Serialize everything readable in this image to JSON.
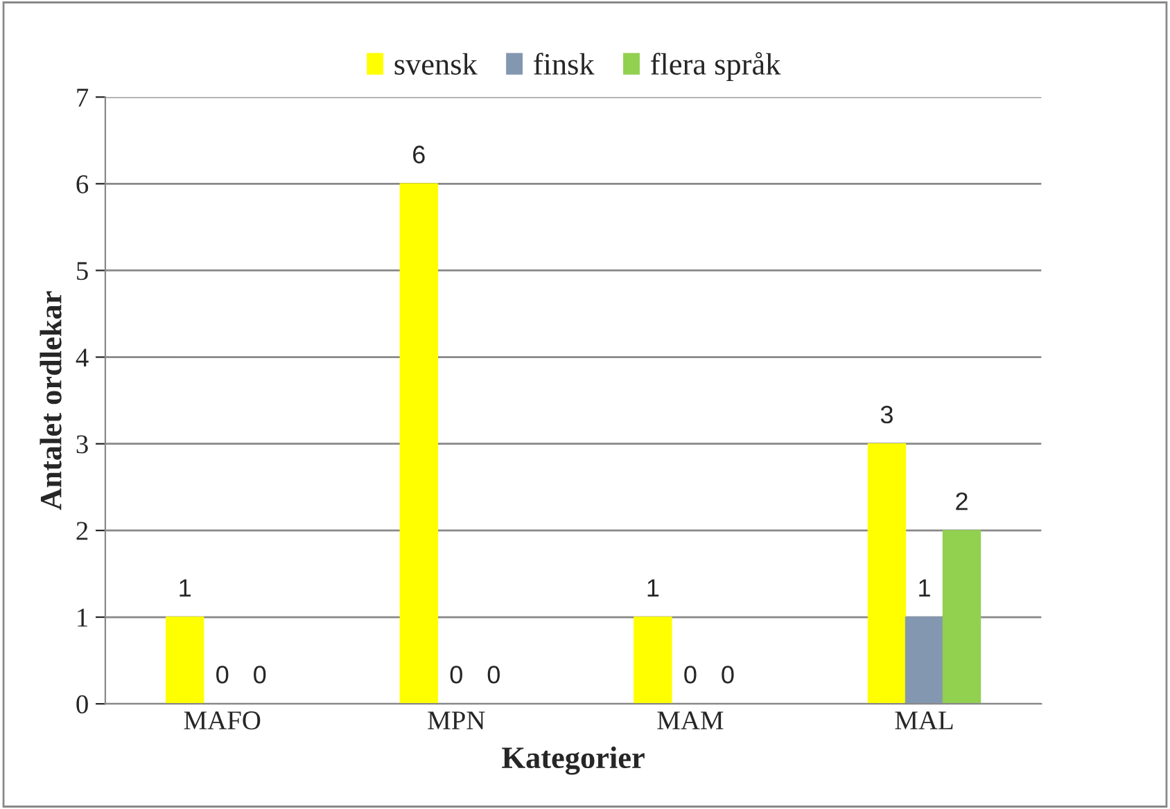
{
  "chart_data": {
    "type": "bar",
    "xlabel": "Kategorier",
    "ylabel": "Antalet ordlekar",
    "categories": [
      "MAFO",
      "MPN",
      "MAM",
      "MAL"
    ],
    "series": [
      {
        "name": "svensk",
        "color": "#ffff00",
        "values": [
          1,
          6,
          1,
          3
        ]
      },
      {
        "name": "finsk",
        "color": "#8497b0",
        "values": [
          0,
          0,
          0,
          1
        ]
      },
      {
        "name": "flera språk",
        "color": "#92d050",
        "values": [
          0,
          0,
          0,
          2
        ]
      }
    ],
    "ylim": [
      0,
      7
    ],
    "yticks": [
      0,
      1,
      2,
      3,
      4,
      5,
      6,
      7
    ],
    "grid": "y",
    "legend": "top",
    "data_labels": true
  }
}
